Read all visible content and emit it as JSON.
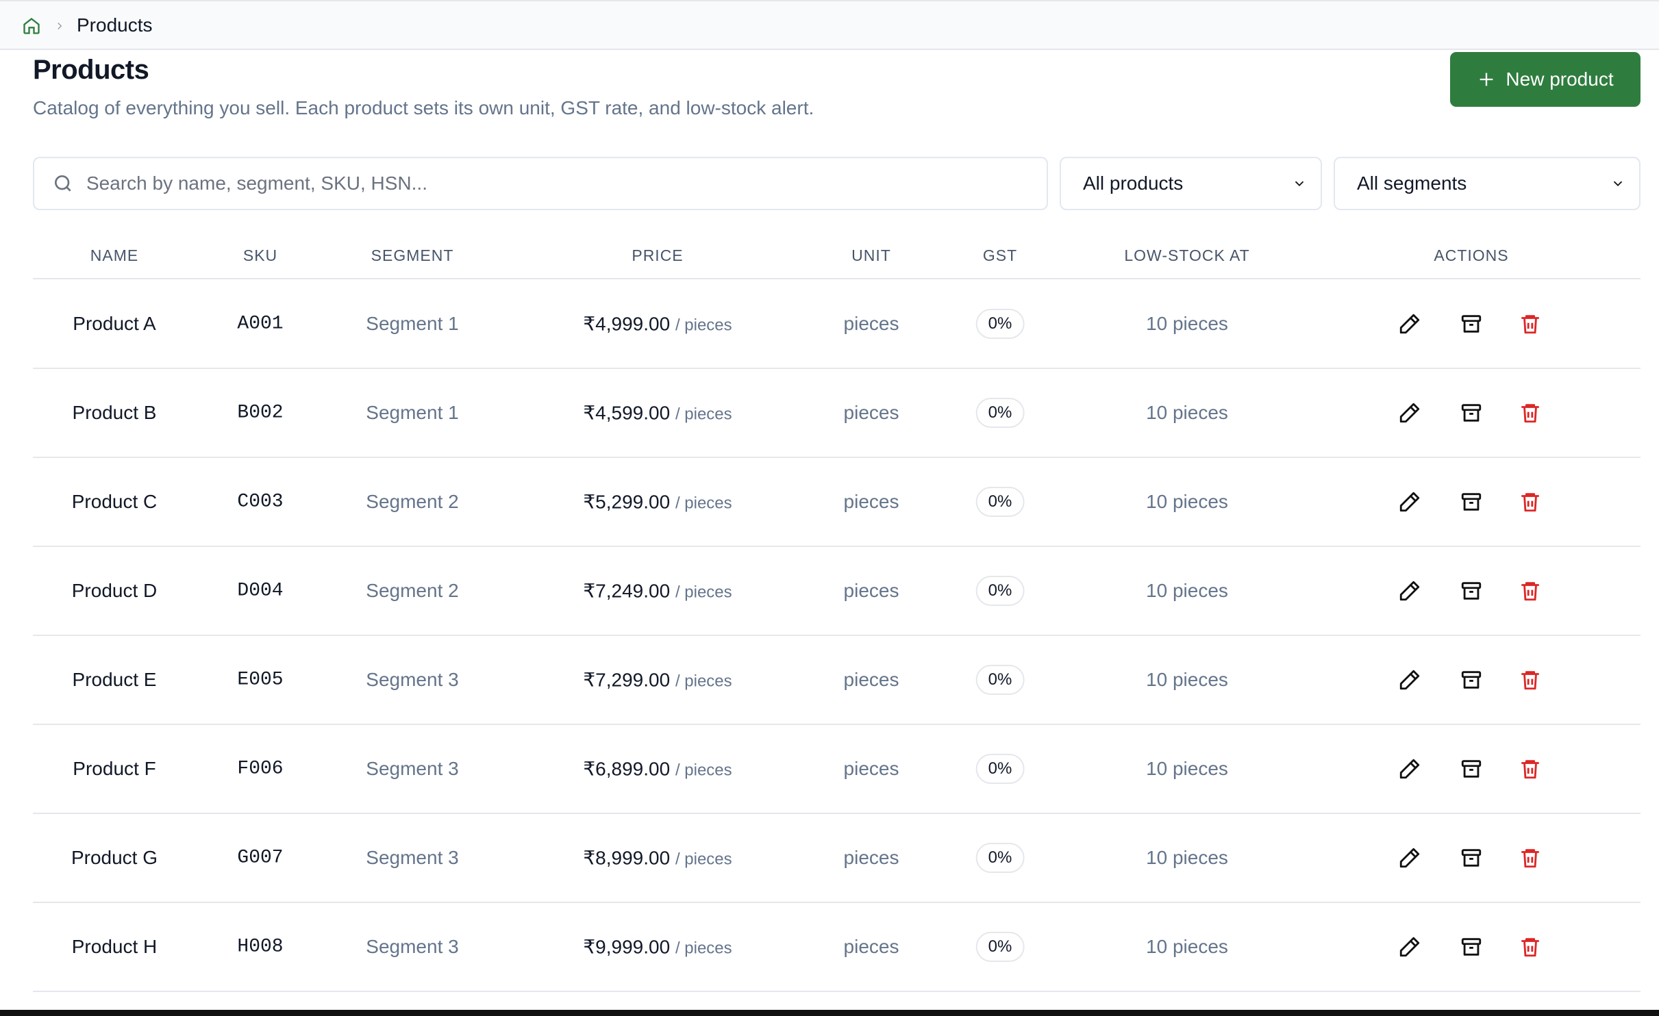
{
  "breadcrumb": {
    "current": "Products"
  },
  "header": {
    "title": "Products",
    "subtitle": "Catalog of everything you sell. Each product sets its own unit, GST rate, and low-stock alert.",
    "button": "New product"
  },
  "filters": {
    "search_placeholder": "Search by name, segment, SKU, HSN...",
    "status": "All products",
    "segment": "All segments"
  },
  "table": {
    "columns": [
      "NAME",
      "SKU",
      "SEGMENT",
      "PRICE",
      "UNIT",
      "GST",
      "LOW-STOCK AT",
      "ACTIONS"
    ],
    "rows": [
      {
        "name": "Product A",
        "sku": "A001",
        "segment": "Segment 1",
        "price": "₹4,999.00",
        "per_unit": "/ pieces",
        "unit": "pieces",
        "gst": "0%",
        "low_stock": "10 pieces"
      },
      {
        "name": "Product B",
        "sku": "B002",
        "segment": "Segment 1",
        "price": "₹4,599.00",
        "per_unit": "/ pieces",
        "unit": "pieces",
        "gst": "0%",
        "low_stock": "10 pieces"
      },
      {
        "name": "Product C",
        "sku": "C003",
        "segment": "Segment 2",
        "price": "₹5,299.00",
        "per_unit": "/ pieces",
        "unit": "pieces",
        "gst": "0%",
        "low_stock": "10 pieces"
      },
      {
        "name": "Product D",
        "sku": "D004",
        "segment": "Segment 2",
        "price": "₹7,249.00",
        "per_unit": "/ pieces",
        "unit": "pieces",
        "gst": "0%",
        "low_stock": "10 pieces"
      },
      {
        "name": "Product E",
        "sku": "E005",
        "segment": "Segment 3",
        "price": "₹7,299.00",
        "per_unit": "/ pieces",
        "unit": "pieces",
        "gst": "0%",
        "low_stock": "10 pieces"
      },
      {
        "name": "Product F",
        "sku": "F006",
        "segment": "Segment 3",
        "price": "₹6,899.00",
        "per_unit": "/ pieces",
        "unit": "pieces",
        "gst": "0%",
        "low_stock": "10 pieces"
      },
      {
        "name": "Product G",
        "sku": "G007",
        "segment": "Segment 3",
        "price": "₹8,999.00",
        "per_unit": "/ pieces",
        "unit": "pieces",
        "gst": "0%",
        "low_stock": "10 pieces"
      },
      {
        "name": "Product H",
        "sku": "H008",
        "segment": "Segment 3",
        "price": "₹9,999.00",
        "per_unit": "/ pieces",
        "unit": "pieces",
        "gst": "0%",
        "low_stock": "10 pieces"
      }
    ]
  }
}
